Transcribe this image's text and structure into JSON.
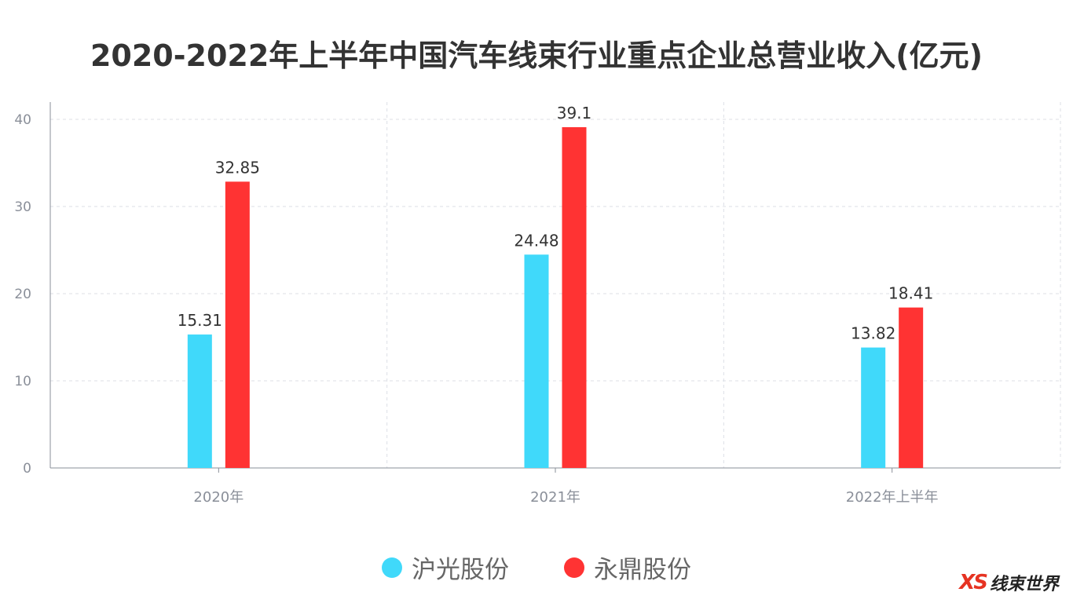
{
  "chart_data": {
    "type": "bar",
    "title": "2020-2022年上半年中国汽车线束行业重点企业总营业收入(亿元)",
    "categories": [
      "2020年",
      "2021年",
      "2022年上半年"
    ],
    "series": [
      {
        "name": "沪光股份",
        "color": "#40d9fa",
        "values": [
          15.31,
          24.48,
          13.82
        ]
      },
      {
        "name": "永鼎股份",
        "color": "#ff3333",
        "values": [
          32.85,
          39.1,
          18.41
        ]
      }
    ],
    "ylim": [
      0,
      40
    ],
    "yticks": [
      0,
      10,
      20,
      30,
      40
    ],
    "grid": true,
    "legend_position": "bottom"
  },
  "watermark": {
    "mark": "XS",
    "text": "线束世界"
  }
}
